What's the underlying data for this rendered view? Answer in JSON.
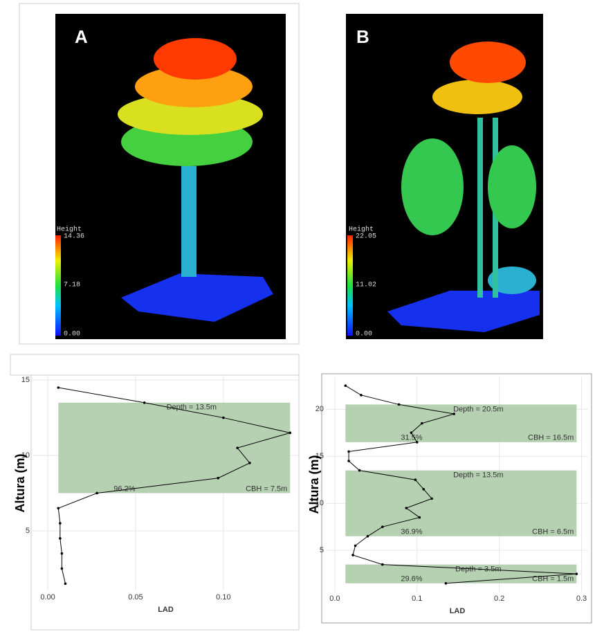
{
  "panels": [
    {
      "letter": "A",
      "legend_title": "Height",
      "legend_labels": [
        "14.36",
        "7.18",
        "0.00"
      ]
    },
    {
      "letter": "B",
      "legend_title": "Height",
      "legend_labels": [
        "22.05",
        "11.02",
        "0.00"
      ]
    }
  ],
  "chart_data": [
    {
      "type": "line",
      "xlabel": "LAD",
      "ylabel": "Altura (m)",
      "color": "#000000",
      "band_color": "#a9c9a4",
      "grid": true,
      "x": [
        0.006,
        0.055,
        0.1,
        0.138,
        0.108,
        0.115,
        0.097,
        0.028,
        0.006,
        0.007,
        0.007,
        0.008,
        0.008,
        0.01
      ],
      "y": [
        14.5,
        13.5,
        12.5,
        11.5,
        10.5,
        9.5,
        8.5,
        7.5,
        6.5,
        5.5,
        4.5,
        3.5,
        2.5,
        1.5
      ],
      "xlim": [
        -0.0087,
        0.143
      ],
      "ylim": [
        1.05,
        15.28
      ],
      "xticks": [
        {
          "value": 0,
          "label": "0.00"
        },
        {
          "value": 0.05,
          "label": "0.05"
        },
        {
          "value": 0.1,
          "label": "0.10"
        }
      ],
      "yticks": [
        5,
        10,
        15
      ],
      "bands": [
        {
          "bottom": 7.5,
          "top": 13.5,
          "depth_label": "Depth = 13.5m",
          "cbh_label": "CBH = 7.5m",
          "percent_label": "96.2%"
        }
      ]
    },
    {
      "type": "line",
      "xlabel": "LAD",
      "ylabel": "Altura (m)",
      "color": "#000000",
      "band_color": "#a9c9a4",
      "grid": true,
      "x": [
        0.013,
        0.032,
        0.078,
        0.145,
        0.106,
        0.093,
        0.1,
        0.017,
        0.017,
        0.03,
        0.098,
        0.108,
        0.118,
        0.087,
        0.103,
        0.058,
        0.04,
        0.025,
        0.022,
        0.058,
        0.294,
        0.135
      ],
      "y": [
        22.5,
        21.5,
        20.5,
        19.5,
        18.5,
        17.5,
        16.5,
        15.5,
        14.5,
        13.5,
        12.5,
        11.5,
        10.5,
        9.5,
        8.5,
        7.5,
        6.5,
        5.5,
        4.5,
        3.5,
        2.5,
        1.5
      ],
      "xlim": [
        -0.01,
        0.308
      ],
      "ylim": [
        0.6,
        23.4
      ],
      "xticks": [
        {
          "value": 0,
          "label": "0.0"
        },
        {
          "value": 0.1,
          "label": "0.1"
        },
        {
          "value": 0.2,
          "label": "0.2"
        },
        {
          "value": 0.3,
          "label": "0.3"
        }
      ],
      "yticks": [
        5,
        10,
        15,
        20
      ],
      "bands": [
        {
          "bottom": 16.5,
          "top": 20.5,
          "depth_label": "Depth = 20.5m",
          "cbh_label": "CBH = 16.5m",
          "percent_label": "31.5%"
        },
        {
          "bottom": 6.5,
          "top": 13.5,
          "depth_label": "Depth = 13.5m",
          "cbh_label": "CBH = 6.5m",
          "percent_label": "36.9%"
        },
        {
          "bottom": 1.5,
          "top": 3.5,
          "depth_label": "Depth = 3.5m",
          "cbh_label": "CBH = 1.5m",
          "percent_label": "29.6%"
        }
      ]
    }
  ]
}
